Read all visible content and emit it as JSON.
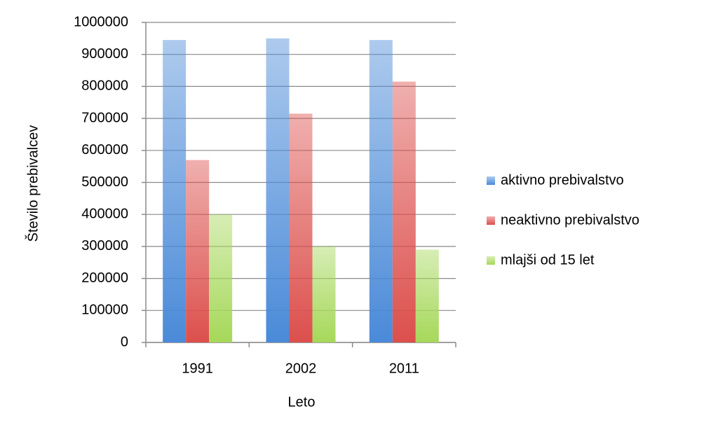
{
  "chart_data": {
    "type": "bar",
    "x_label": "Leto",
    "y_label": "Število prebivalcev",
    "categories": [
      "1991",
      "2002",
      "2011"
    ],
    "series": [
      {
        "name": "aktivno prebivalstvo",
        "color": "#4a8ad8",
        "values": [
          945000,
          950000,
          945000
        ]
      },
      {
        "name": "neaktivno prebivalstvo",
        "color": "#dc4f4c",
        "values": [
          570000,
          715000,
          815000
        ]
      },
      {
        "name": "mlajši od 15 let",
        "color": "#a6d85a",
        "values": [
          400000,
          300000,
          290000
        ]
      }
    ],
    "ylim": [
      0,
      1000000
    ],
    "yticks": [
      0,
      100000,
      200000,
      300000,
      400000,
      500000,
      600000,
      700000,
      800000,
      900000,
      1000000
    ],
    "grid": true,
    "legend": "right"
  }
}
